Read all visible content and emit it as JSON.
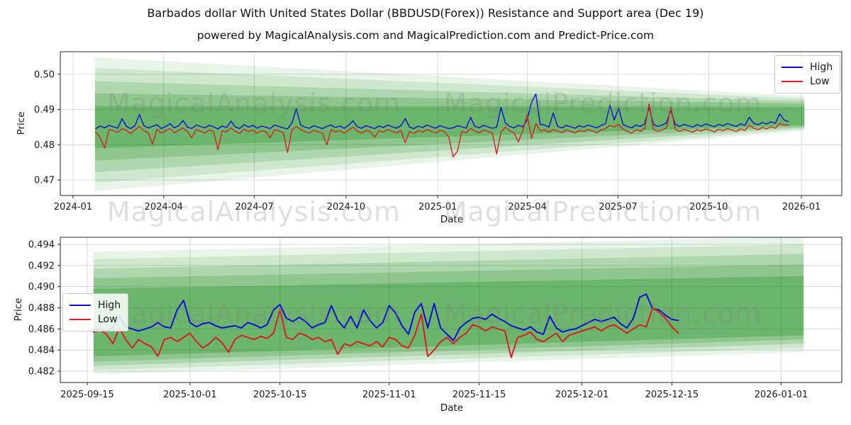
{
  "title": "Barbados dollar With United States Dollar (BBDUSD(Forex)) Resistance and Support area (Dec 19)",
  "subtitle": "powered by MagicalAnalysis.com and MagicalPrediction.com and Predict-Price.com",
  "watermarks": {
    "left": "MagicalAnalysis.com",
    "right": "MagicalPrediction.com"
  },
  "colors": {
    "high": "#0d0dd6",
    "low": "#d62020",
    "band_green": "#008000",
    "grid": "#d9d9d9",
    "spine": "#262626",
    "tick_text": "#1a1a1a"
  },
  "chart_data": [
    {
      "type": "line",
      "ylabel": "Price",
      "xlabel": "Date",
      "x_epoch": "2024-01-01",
      "legend_position": "upper right",
      "grid": true,
      "yticks": [
        {
          "label": "0.47",
          "value": 0.47
        },
        {
          "label": "0.48",
          "value": 0.48
        },
        {
          "label": "0.49",
          "value": 0.49
        },
        {
          "label": "0.50",
          "value": 0.5
        }
      ],
      "xticks": [
        {
          "label": "2024-01",
          "day": 0
        },
        {
          "label": "2024-04",
          "day": 91
        },
        {
          "label": "2024-07",
          "day": 182
        },
        {
          "label": "2024-10",
          "day": 274
        },
        {
          "label": "2025-01",
          "day": 366
        },
        {
          "label": "2025-04",
          "day": 456
        },
        {
          "label": "2025-07",
          "day": 547
        },
        {
          "label": "2025-10",
          "day": 638
        },
        {
          "label": "2026-01",
          "day": 731
        }
      ],
      "series": [
        {
          "name": "High",
          "color_key": "high",
          "start_day": 23,
          "step_days": 4.371,
          "values": [
            0.4846,
            0.4853,
            0.4848,
            0.4855,
            0.4851,
            0.4847,
            0.4874,
            0.4852,
            0.4846,
            0.4855,
            0.4886,
            0.4854,
            0.4848,
            0.4852,
            0.4857,
            0.4846,
            0.4852,
            0.486,
            0.4848,
            0.4854,
            0.4869,
            0.485,
            0.4846,
            0.4856,
            0.4852,
            0.4848,
            0.4855,
            0.4851,
            0.4845,
            0.4853,
            0.4849,
            0.4867,
            0.4851,
            0.4846,
            0.4857,
            0.485,
            0.4855,
            0.4847,
            0.4853,
            0.485,
            0.4846,
            0.4856,
            0.4852,
            0.4848,
            0.4845,
            0.4862,
            0.4902,
            0.4856,
            0.485,
            0.4847,
            0.4854,
            0.485,
            0.4846,
            0.4852,
            0.4856,
            0.4849,
            0.4853,
            0.4847,
            0.4855,
            0.4868,
            0.4851,
            0.4847,
            0.4854,
            0.485,
            0.4846,
            0.4853,
            0.4849,
            0.4856,
            0.4851,
            0.4847,
            0.4854,
            0.4874,
            0.485,
            0.4846,
            0.4853,
            0.4849,
            0.4856,
            0.4851,
            0.4847,
            0.4854,
            0.485,
            0.4846,
            0.4848,
            0.4854,
            0.4851,
            0.4847,
            0.4878,
            0.4852,
            0.4848,
            0.4855,
            0.4851,
            0.4847,
            0.485,
            0.4906,
            0.4862,
            0.4852,
            0.4848,
            0.4855,
            0.4851,
            0.487,
            0.492,
            0.4944,
            0.4858,
            0.4856,
            0.485,
            0.489,
            0.4852,
            0.4848,
            0.4855,
            0.4851,
            0.4847,
            0.4854,
            0.485,
            0.4856,
            0.4852,
            0.4848,
            0.4855,
            0.486,
            0.4912,
            0.487,
            0.4904,
            0.4858,
            0.4852,
            0.4848,
            0.4856,
            0.4852,
            0.486,
            0.4906,
            0.4858,
            0.4852,
            0.4856,
            0.4862,
            0.4898,
            0.4858,
            0.4852,
            0.4858,
            0.4854,
            0.485,
            0.4857,
            0.4853,
            0.4859,
            0.4855,
            0.4851,
            0.4858,
            0.4854,
            0.486,
            0.4856,
            0.4852,
            0.4859,
            0.4855,
            0.4878,
            0.4861,
            0.4857,
            0.4863,
            0.4859,
            0.4865,
            0.4861,
            0.4888,
            0.487,
            0.4866
          ]
        },
        {
          "name": "Low",
          "color_key": "low",
          "start_day": 23,
          "step_days": 4.371,
          "values": [
            0.4836,
            0.482,
            0.479,
            0.4843,
            0.484,
            0.4835,
            0.4846,
            0.4841,
            0.4832,
            0.4843,
            0.4852,
            0.484,
            0.4834,
            0.4802,
            0.4844,
            0.4833,
            0.484,
            0.4846,
            0.4834,
            0.4841,
            0.4848,
            0.4837,
            0.482,
            0.4843,
            0.4839,
            0.4833,
            0.4842,
            0.4838,
            0.4786,
            0.484,
            0.4836,
            0.4848,
            0.4838,
            0.4832,
            0.4844,
            0.4837,
            0.4842,
            0.4833,
            0.484,
            0.4837,
            0.482,
            0.4843,
            0.4839,
            0.4834,
            0.4778,
            0.4842,
            0.4852,
            0.4843,
            0.4837,
            0.4833,
            0.4841,
            0.4837,
            0.4832,
            0.48,
            0.4843,
            0.4836,
            0.484,
            0.4833,
            0.4842,
            0.485,
            0.4838,
            0.4833,
            0.4841,
            0.4837,
            0.4822,
            0.484,
            0.4836,
            0.4843,
            0.4838,
            0.4833,
            0.4841,
            0.4806,
            0.4837,
            0.4832,
            0.484,
            0.4836,
            0.4843,
            0.4838,
            0.4833,
            0.4841,
            0.4837,
            0.4822,
            0.4766,
            0.4782,
            0.4838,
            0.4834,
            0.4846,
            0.4839,
            0.4834,
            0.4842,
            0.4838,
            0.4833,
            0.4774,
            0.4836,
            0.485,
            0.4839,
            0.4834,
            0.4808,
            0.484,
            0.4886,
            0.4818,
            0.486,
            0.484,
            0.4842,
            0.4836,
            0.4843,
            0.4839,
            0.4834,
            0.4842,
            0.4838,
            0.4833,
            0.4841,
            0.4837,
            0.4843,
            0.4839,
            0.4834,
            0.4842,
            0.4846,
            0.4855,
            0.485,
            0.4858,
            0.4844,
            0.4838,
            0.4833,
            0.4842,
            0.4838,
            0.4846,
            0.4916,
            0.4844,
            0.4838,
            0.4842,
            0.4848,
            0.4906,
            0.4844,
            0.4838,
            0.4844,
            0.484,
            0.4835,
            0.4843,
            0.4839,
            0.4845,
            0.4841,
            0.4836,
            0.4844,
            0.484,
            0.4846,
            0.4842,
            0.4837,
            0.4845,
            0.4841,
            0.4855,
            0.4847,
            0.4843,
            0.4849,
            0.4845,
            0.4851,
            0.4847,
            0.486,
            0.4856,
            0.4856
          ]
        }
      ],
      "bands": [
        {
          "alpha": 0.09,
          "x0_day": 22,
          "x1_day": 734,
          "top": [
            0.5048,
            0.4938
          ],
          "bottom": [
            0.4668,
            0.484
          ]
        },
        {
          "alpha": 0.11,
          "x0_day": 22,
          "x1_day": 734,
          "top": [
            0.5018,
            0.4931
          ],
          "bottom": [
            0.4692,
            0.4844
          ]
        },
        {
          "alpha": 0.15,
          "x0_day": 22,
          "x1_day": 734,
          "top": [
            0.498,
            0.4924
          ],
          "bottom": [
            0.4722,
            0.4848
          ]
        },
        {
          "alpha": 0.19,
          "x0_day": 22,
          "x1_day": 734,
          "top": [
            0.4946,
            0.4917
          ],
          "bottom": [
            0.4755,
            0.4852
          ]
        },
        {
          "alpha": 0.24,
          "x0_day": 22,
          "x1_day": 734,
          "top": [
            0.491,
            0.4908
          ],
          "bottom": [
            0.479,
            0.4856
          ]
        }
      ]
    },
    {
      "type": "line",
      "ylabel": "Price",
      "xlabel": "Date",
      "x_epoch": "2025-09-15",
      "legend_position": "upper left",
      "grid": true,
      "yticks": [
        {
          "label": "0.482",
          "value": 0.482
        },
        {
          "label": "0.484",
          "value": 0.484
        },
        {
          "label": "0.486",
          "value": 0.486
        },
        {
          "label": "0.488",
          "value": 0.488
        },
        {
          "label": "0.490",
          "value": 0.49
        },
        {
          "label": "0.492",
          "value": 0.492
        },
        {
          "label": "0.494",
          "value": 0.494
        }
      ],
      "xticks": [
        {
          "label": "2025-09-15",
          "day": 0
        },
        {
          "label": "2025-10-01",
          "day": 16
        },
        {
          "label": "2025-10-15",
          "day": 30
        },
        {
          "label": "2025-11-01",
          "day": 47
        },
        {
          "label": "2025-11-15",
          "day": 61
        },
        {
          "label": "2025-12-01",
          "day": 77
        },
        {
          "label": "2025-12-15",
          "day": 91
        },
        {
          "label": "2026-01-01",
          "day": 108
        }
      ],
      "series": [
        {
          "name": "High",
          "color_key": "high",
          "start_day": 1,
          "step_days": 1,
          "values": [
            0.4859,
            0.486,
            0.4858,
            0.4861,
            0.4872,
            0.4862,
            0.486,
            0.4858,
            0.486,
            0.4862,
            0.4866,
            0.4862,
            0.4861,
            0.4878,
            0.4887,
            0.4866,
            0.4862,
            0.4865,
            0.4866,
            0.4863,
            0.4861,
            0.4862,
            0.4863,
            0.4861,
            0.4866,
            0.4864,
            0.4861,
            0.4864,
            0.4878,
            0.4883,
            0.487,
            0.4867,
            0.4871,
            0.4867,
            0.4861,
            0.4864,
            0.4866,
            0.4882,
            0.4868,
            0.4861,
            0.4872,
            0.4861,
            0.4878,
            0.4868,
            0.4861,
            0.4866,
            0.4882,
            0.4875,
            0.4863,
            0.4855,
            0.4876,
            0.4884,
            0.4861,
            0.4884,
            0.4861,
            0.4855,
            0.4849,
            0.4861,
            0.4866,
            0.487,
            0.4871,
            0.4869,
            0.4874,
            0.487,
            0.4867,
            0.4863,
            0.4861,
            0.4859,
            0.4862,
            0.4857,
            0.4855,
            0.4872,
            0.4861,
            0.4857,
            0.4859,
            0.486,
            0.4863,
            0.4866,
            0.4869,
            0.4867,
            0.4869,
            0.4871,
            0.4865,
            0.4861,
            0.487,
            0.489,
            0.4893,
            0.4879,
            0.4878,
            0.4873,
            0.4869,
            0.4868
          ]
        },
        {
          "name": "Low",
          "color_key": "low",
          "start_day": 1,
          "step_days": 1,
          "values": [
            0.4857,
            0.4859,
            0.4855,
            0.4846,
            0.4861,
            0.485,
            0.4842,
            0.485,
            0.4846,
            0.4843,
            0.4834,
            0.485,
            0.4852,
            0.4848,
            0.4852,
            0.4856,
            0.4848,
            0.4842,
            0.4846,
            0.4852,
            0.4847,
            0.4838,
            0.485,
            0.4854,
            0.4852,
            0.485,
            0.4853,
            0.4851,
            0.4856,
            0.4878,
            0.4852,
            0.485,
            0.4856,
            0.4854,
            0.485,
            0.4852,
            0.4848,
            0.485,
            0.4836,
            0.4846,
            0.4844,
            0.4848,
            0.4846,
            0.4844,
            0.4848,
            0.4843,
            0.4852,
            0.485,
            0.4844,
            0.4842,
            0.4854,
            0.4874,
            0.4834,
            0.484,
            0.4848,
            0.4852,
            0.4846,
            0.4852,
            0.4856,
            0.4864,
            0.4862,
            0.4858,
            0.4862,
            0.486,
            0.4858,
            0.4833,
            0.4852,
            0.4854,
            0.4857,
            0.485,
            0.4848,
            0.4852,
            0.4856,
            0.4848,
            0.4854,
            0.4856,
            0.4858,
            0.486,
            0.4862,
            0.4858,
            0.4862,
            0.4864,
            0.486,
            0.4856,
            0.486,
            0.4864,
            0.4862,
            0.488,
            0.4876,
            0.487,
            0.4862,
            0.4856
          ]
        }
      ],
      "bands": [
        {
          "alpha": 0.09,
          "x0_day": 1,
          "x1_day": 111.5,
          "top": [
            0.4933,
            0.4947
          ],
          "bottom": [
            0.4817,
            0.4838
          ]
        },
        {
          "alpha": 0.11,
          "x0_day": 1,
          "x1_day": 111.5,
          "top": [
            0.4926,
            0.494
          ],
          "bottom": [
            0.4821,
            0.4842
          ]
        },
        {
          "alpha": 0.15,
          "x0_day": 1,
          "x1_day": 111.5,
          "top": [
            0.4917,
            0.4931
          ],
          "bottom": [
            0.4825,
            0.4846
          ]
        },
        {
          "alpha": 0.19,
          "x0_day": 1,
          "x1_day": 111.5,
          "top": [
            0.4908,
            0.4921
          ],
          "bottom": [
            0.4829,
            0.485
          ]
        },
        {
          "alpha": 0.24,
          "x0_day": 1,
          "x1_day": 111.5,
          "top": [
            0.4898,
            0.491
          ],
          "bottom": [
            0.4834,
            0.4854
          ]
        }
      ]
    }
  ]
}
